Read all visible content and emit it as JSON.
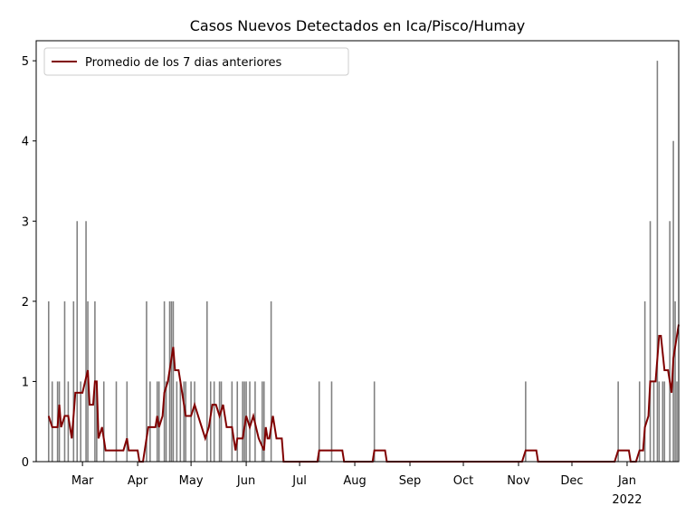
{
  "chart_data": {
    "type": "bar",
    "title": "Casos Nuevos Detectados en Ica/Pisco/Humay",
    "xlim": [
      33,
      394
    ],
    "ylim": [
      0,
      5.25
    ],
    "xticks": [
      {
        "value": 59,
        "label": "Mar"
      },
      {
        "value": 90,
        "label": "Apr"
      },
      {
        "value": 120,
        "label": "May"
      },
      {
        "value": 151,
        "label": "Jun"
      },
      {
        "value": 181,
        "label": "Jul"
      },
      {
        "value": 212,
        "label": "Aug"
      },
      {
        "value": 243,
        "label": "Sep"
      },
      {
        "value": 273,
        "label": "Oct"
      },
      {
        "value": 304,
        "label": "Nov"
      },
      {
        "value": 334,
        "label": "Dec"
      },
      {
        "value": 365,
        "label": "Jan 2022"
      }
    ],
    "yticks": [
      0,
      1,
      2,
      3,
      4,
      5
    ],
    "legend": "upper left",
    "series": [
      {
        "type": "bar",
        "color": "#808080",
        "x": [
          40,
          42,
          45,
          46,
          49,
          51,
          54,
          56,
          58,
          61,
          62,
          66,
          67,
          71,
          78,
          84,
          95,
          97,
          101,
          102,
          105,
          106,
          108,
          109,
          110,
          112,
          114,
          116,
          117,
          120,
          122,
          129,
          131,
          133,
          136,
          137,
          143,
          146,
          149,
          150,
          151,
          153,
          156,
          160,
          161,
          165,
          192,
          199,
          223,
          308,
          360,
          372,
          375,
          378,
          380,
          382,
          383,
          385,
          386,
          389,
          391,
          392,
          393
        ],
        "values": [
          2,
          1,
          1,
          1,
          2,
          1,
          2,
          3,
          1,
          3,
          2,
          2,
          1,
          1,
          1,
          1,
          2,
          1,
          1,
          1,
          2,
          1,
          2,
          2,
          2,
          1,
          1,
          1,
          1,
          1,
          1,
          2,
          1,
          1,
          1,
          1,
          1,
          1,
          1,
          1,
          1,
          1,
          1,
          1,
          1,
          2,
          1,
          1,
          1,
          1,
          1,
          1,
          2,
          3,
          1,
          5,
          1,
          1,
          1,
          3,
          4,
          2,
          1
        ]
      },
      {
        "type": "line",
        "name": "Promedio de los 7 dias anteriores",
        "color": "#800000",
        "x": [
          40,
          42,
          45,
          46,
          47,
          49,
          51,
          53,
          55,
          59,
          62,
          63,
          65,
          66,
          67,
          68,
          70,
          72,
          82,
          84,
          85,
          90,
          91,
          93,
          95,
          96,
          100,
          101,
          102,
          104,
          105,
          107,
          110,
          111,
          113,
          115,
          117,
          120,
          122,
          126,
          128,
          130,
          132,
          134,
          136,
          138,
          140,
          143,
          145,
          146,
          149,
          151,
          153,
          155,
          158,
          161,
          162,
          163,
          164,
          166,
          168,
          171,
          172,
          191,
          192,
          205,
          206,
          222,
          223,
          229,
          230,
          306,
          308,
          314,
          315,
          358,
          360,
          366,
          367,
          370,
          372,
          374,
          375,
          377,
          378,
          381,
          383,
          384,
          386,
          388,
          390,
          391,
          392,
          394
        ],
        "values": [
          0.57,
          0.43,
          0.43,
          0.71,
          0.43,
          0.57,
          0.57,
          0.29,
          0.86,
          0.86,
          1.14,
          0.71,
          0.71,
          1.0,
          1.0,
          0.29,
          0.43,
          0.14,
          0.14,
          0.29,
          0.14,
          0.14,
          0,
          0,
          0.29,
          0.43,
          0.43,
          0.57,
          0.43,
          0.57,
          0.86,
          1.0,
          1.43,
          1.14,
          1.14,
          0.86,
          0.57,
          0.57,
          0.71,
          0.43,
          0.29,
          0.43,
          0.71,
          0.71,
          0.57,
          0.71,
          0.43,
          0.43,
          0.14,
          0.29,
          0.29,
          0.57,
          0.43,
          0.57,
          0.29,
          0.14,
          0.43,
          0.29,
          0.29,
          0.57,
          0.29,
          0.29,
          0,
          0,
          0.14,
          0.14,
          0,
          0,
          0.14,
          0.14,
          0,
          0,
          0.14,
          0.14,
          0,
          0,
          0.14,
          0.14,
          0,
          0,
          0.14,
          0.14,
          0.43,
          0.57,
          1.0,
          1.0,
          1.57,
          1.57,
          1.14,
          1.14,
          0.86,
          1.29,
          1.43,
          1.71
        ]
      }
    ]
  }
}
